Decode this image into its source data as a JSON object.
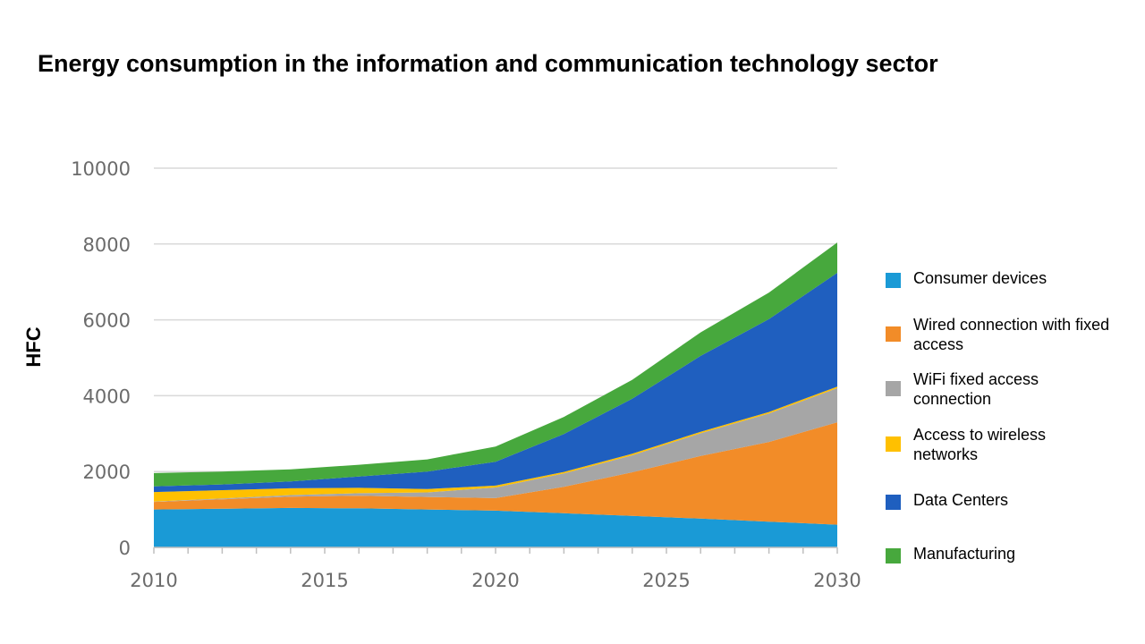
{
  "chart_data": {
    "type": "area",
    "stacked": true,
    "title": "Energy consumption in the information and communication technology sector",
    "ylabel": "HFC",
    "xlabel": "",
    "x": [
      2010,
      2012,
      2014,
      2016,
      2018,
      2020,
      2022,
      2024,
      2026,
      2028,
      2030
    ],
    "xticks": [
      "2010",
      "2015",
      "2020",
      "2025",
      "2030"
    ],
    "yticks": [
      "0",
      "2000",
      "4000",
      "6000",
      "8000",
      "10000"
    ],
    "xlim": [
      2010,
      2030
    ],
    "ylim": [
      0,
      10000
    ],
    "grid": "horizontal",
    "legend_position": "right",
    "series": [
      {
        "name": "Consumer devices",
        "color": "#1a9ad6",
        "values": [
          1000,
          1020,
          1040,
          1030,
          1000,
          970,
          900,
          830,
          760,
          680,
          600
        ]
      },
      {
        "name": "Wired connection with fixed access",
        "color": "#f28c28",
        "values": [
          200,
          250,
          300,
          330,
          330,
          330,
          700,
          1150,
          1650,
          2100,
          2700
        ]
      },
      {
        "name": "WiFi fixed access connection",
        "color": "#a6a6a6",
        "values": [
          10,
          20,
          40,
          70,
          120,
          280,
          350,
          450,
          600,
          750,
          900
        ]
      },
      {
        "name": "Access to wireless networks",
        "color": "#ffc000",
        "values": [
          250,
          220,
          180,
          140,
          90,
          50,
          40,
          40,
          40,
          40,
          40
        ]
      },
      {
        "name": "Data Centers",
        "color": "#1f5fbf",
        "values": [
          150,
          150,
          180,
          300,
          460,
          630,
          1000,
          1450,
          2000,
          2450,
          3000
        ]
      },
      {
        "name": "Manufacturing",
        "color": "#47a83d",
        "values": [
          350,
          340,
          320,
          310,
          320,
          400,
          450,
          500,
          620,
          700,
          800
        ]
      }
    ]
  },
  "legend": {
    "items": [
      "Consumer devices",
      "Wired connection with fixed access",
      "WiFi fixed access connection",
      "Access to wireless networks",
      "Data Centers",
      "Manufacturing"
    ]
  }
}
